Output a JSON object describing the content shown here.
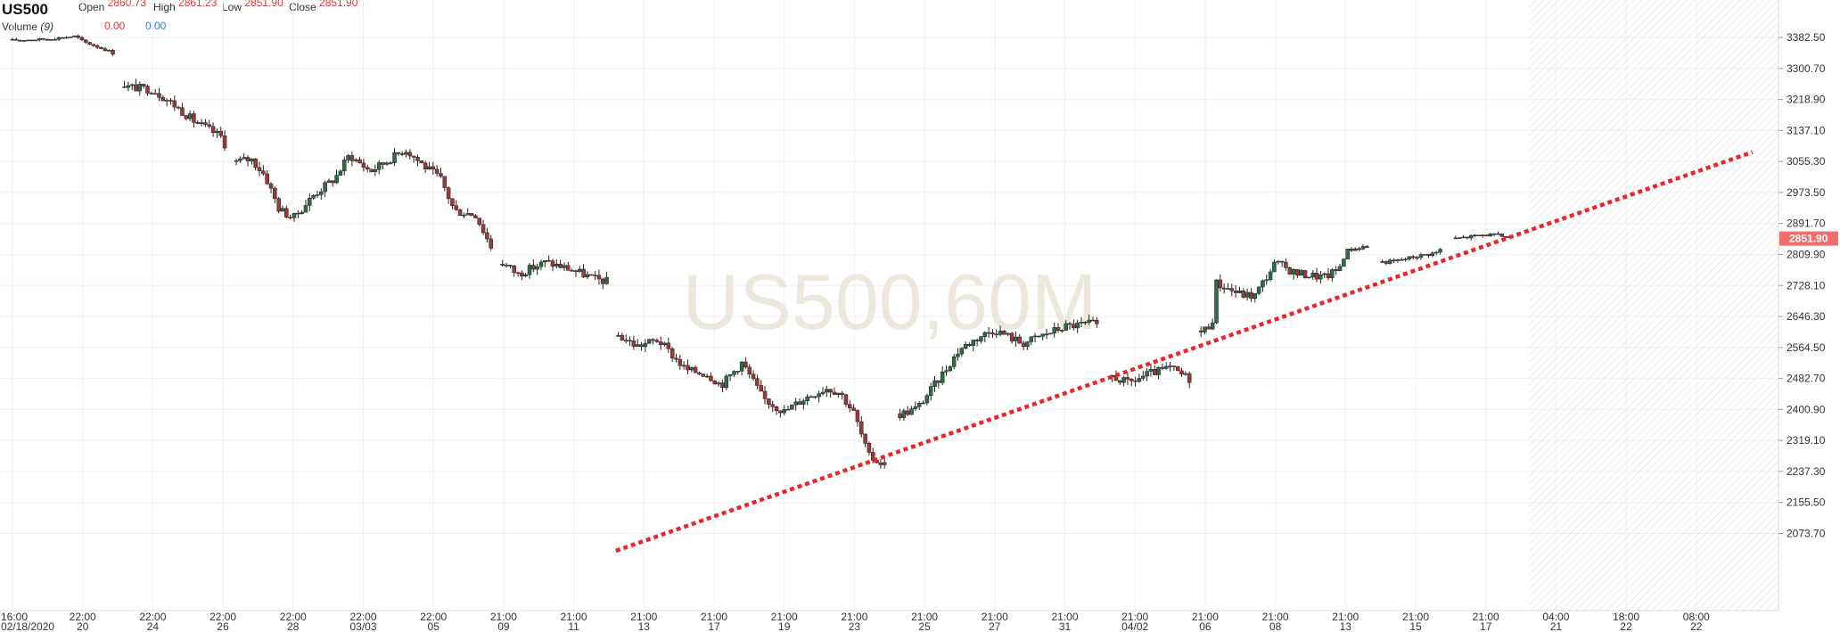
{
  "header": {
    "symbol": "US500",
    "open_label": "Open",
    "open_value": "2860.73",
    "high_label": "High",
    "high_value": "2861.23",
    "low_label": "Low",
    "low_value": "2851.90",
    "close_label": "Close",
    "close_value": "2851.90",
    "volume_label": "Volume",
    "volume_period": "(9)",
    "volume_value_1": "0.00",
    "volume_value_2": "0.00"
  },
  "watermark": "US500,60M",
  "last_price_label": "2851.90",
  "colors": {
    "up": "#2e6b48",
    "down": "#9b3838",
    "wick": "#222222",
    "trendline": "#e8262b",
    "last_price_bg": "#f26d6d",
    "grid": "#f0f0f0"
  },
  "chart_data": {
    "type": "candlestick",
    "y_axis": {
      "position": "right",
      "ticks": [
        "3382.50",
        "3300.70",
        "3218.90",
        "3137.10",
        "3055.30",
        "2973.50",
        "2891.70",
        "2809.90",
        "2728.10",
        "2646.30",
        "2564.50",
        "2482.70",
        "2400.90",
        "2319.10",
        "2237.30",
        "2155.50",
        "2073.70"
      ],
      "range": [
        2025,
        3410
      ]
    },
    "x_axis": {
      "ticks": [
        {
          "time": "16:00",
          "date": "02/18/2020"
        },
        {
          "time": "22:00",
          "date": "20"
        },
        {
          "time": "22:00",
          "date": "24"
        },
        {
          "time": "22:00",
          "date": "26"
        },
        {
          "time": "22:00",
          "date": "28"
        },
        {
          "time": "22:00",
          "date": "03/03"
        },
        {
          "time": "22:00",
          "date": "05"
        },
        {
          "time": "21:00",
          "date": "09"
        },
        {
          "time": "21:00",
          "date": "11"
        },
        {
          "time": "21:00",
          "date": "13"
        },
        {
          "time": "21:00",
          "date": "17"
        },
        {
          "time": "21:00",
          "date": "19"
        },
        {
          "time": "21:00",
          "date": "23"
        },
        {
          "time": "21:00",
          "date": "25"
        },
        {
          "time": "21:00",
          "date": "27"
        },
        {
          "time": "21:00",
          "date": "31"
        },
        {
          "time": "21:00",
          "date": "04/02"
        },
        {
          "time": "21:00",
          "date": "06"
        },
        {
          "time": "21:00",
          "date": "08"
        },
        {
          "time": "21:00",
          "date": "13"
        },
        {
          "time": "21:00",
          "date": "15"
        },
        {
          "time": "21:00",
          "date": "17"
        },
        {
          "time": "04:00",
          "date": "21"
        },
        {
          "time": "18:00",
          "date": "22"
        },
        {
          "time": "08:00",
          "date": "22"
        }
      ]
    },
    "trendline": {
      "style": "dotted",
      "from_tick": 8.6,
      "from_price": 2028,
      "to_tick": 24.8,
      "to_price": 3080
    },
    "last_price": 2851.9,
    "price_path": [
      [
        0.0,
        3375
      ],
      [
        0.5,
        3378
      ],
      [
        0.9,
        3386
      ],
      [
        1.0,
        3372
      ],
      [
        1.4,
        3345
      ],
      [
        1.5,
        3330
      ],
      [
        1.6,
        3253
      ],
      [
        2.0,
        3245
      ],
      [
        2.3,
        3205
      ],
      [
        2.6,
        3160
      ],
      [
        3.0,
        3118
      ],
      [
        3.1,
        3052
      ],
      [
        3.4,
        3062
      ],
      [
        3.6,
        3018
      ],
      [
        3.8,
        2930
      ],
      [
        4.0,
        2905
      ],
      [
        4.3,
        2968
      ],
      [
        4.6,
        3012
      ],
      [
        4.8,
        3072
      ],
      [
        5.1,
        3030
      ],
      [
        5.3,
        3052
      ],
      [
        5.6,
        3088
      ],
      [
        5.9,
        3038
      ],
      [
        6.1,
        3010
      ],
      [
        6.3,
        2925
      ],
      [
        6.6,
        2915
      ],
      [
        6.9,
        2800
      ],
      [
        7.2,
        2758
      ],
      [
        7.6,
        2790
      ],
      [
        8.0,
        2768
      ],
      [
        8.3,
        2745
      ],
      [
        8.5,
        2738
      ],
      [
        8.6,
        2600
      ],
      [
        8.9,
        2568
      ],
      [
        9.2,
        2585
      ],
      [
        9.4,
        2545
      ],
      [
        9.6,
        2505
      ],
      [
        9.9,
        2495
      ],
      [
        10.1,
        2465
      ],
      [
        10.4,
        2525
      ],
      [
        10.7,
        2430
      ],
      [
        11.0,
        2395
      ],
      [
        11.3,
        2432
      ],
      [
        11.6,
        2458
      ],
      [
        11.8,
        2445
      ],
      [
        12.0,
        2390
      ],
      [
        12.2,
        2278
      ],
      [
        12.4,
        2258
      ],
      [
        12.5,
        2252
      ],
      [
        12.6,
        2385
      ],
      [
        12.9,
        2405
      ],
      [
        13.2,
        2480
      ],
      [
        13.5,
        2560
      ],
      [
        13.8,
        2595
      ],
      [
        14.0,
        2612
      ],
      [
        14.4,
        2575
      ],
      [
        14.7,
        2598
      ],
      [
        15.0,
        2620
      ],
      [
        15.4,
        2628
      ],
      [
        15.5,
        2608
      ],
      [
        15.6,
        2495
      ],
      [
        15.9,
        2470
      ],
      [
        16.2,
        2495
      ],
      [
        16.5,
        2510
      ],
      [
        16.7,
        2490
      ],
      [
        16.8,
        2480
      ],
      [
        16.9,
        2598
      ],
      [
        17.1,
        2630
      ],
      [
        17.15,
        2735
      ],
      [
        17.5,
        2705
      ],
      [
        17.7,
        2700
      ],
      [
        18.0,
        2788
      ],
      [
        18.3,
        2760
      ],
      [
        18.7,
        2750
      ],
      [
        18.9,
        2770
      ],
      [
        19.0,
        2820
      ],
      [
        19.3,
        2832
      ],
      [
        19.4,
        2788
      ],
      [
        19.7,
        2792
      ],
      [
        20.0,
        2805
      ],
      [
        20.3,
        2815
      ],
      [
        20.5,
        2850
      ],
      [
        20.7,
        2855
      ],
      [
        21.0,
        2862
      ],
      [
        21.3,
        2858
      ],
      [
        21.35,
        2851.9
      ]
    ],
    "session_gaps": [
      1.5,
      3.1,
      6.9,
      8.55,
      12.55,
      15.55,
      16.85,
      19.4,
      20.45
    ]
  }
}
